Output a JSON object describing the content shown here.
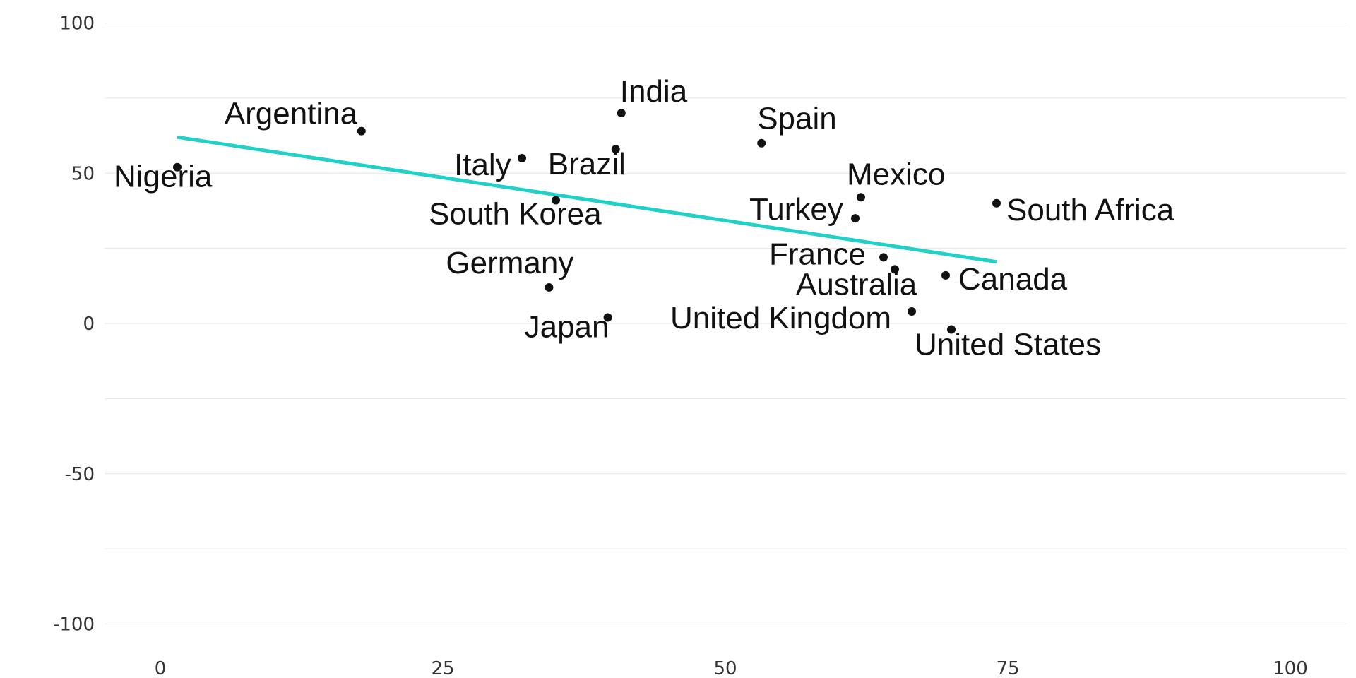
{
  "chart_data": {
    "type": "scatter",
    "title": "",
    "xlabel": "",
    "ylabel": "",
    "xlim": [
      -5,
      105
    ],
    "ylim": [
      -105,
      100
    ],
    "x_ticks": [
      0,
      25,
      50,
      75,
      100
    ],
    "y_ticks": [
      100,
      50,
      0,
      -50,
      -100
    ],
    "grid": "horizontal",
    "colors": {
      "points": "#111111",
      "trendline": "#1fd1c7",
      "grid": "#e6e6e6",
      "tick_text": "#333333"
    },
    "points": [
      {
        "label": "Nigeria",
        "x": 1.5,
        "y": 52
      },
      {
        "label": "Argentina",
        "x": 17.8,
        "y": 64
      },
      {
        "label": "Italy",
        "x": 32,
        "y": 55
      },
      {
        "label": "South Korea",
        "x": 35,
        "y": 41
      },
      {
        "label": "Germany",
        "x": 34.4,
        "y": 12
      },
      {
        "label": "Japan",
        "x": 39.6,
        "y": 2
      },
      {
        "label": "India",
        "x": 40.8,
        "y": 70
      },
      {
        "label": "Brazil",
        "x": 40.3,
        "y": 58
      },
      {
        "label": "Spain",
        "x": 53.2,
        "y": 60
      },
      {
        "label": "Mexico",
        "x": 62,
        "y": 42
      },
      {
        "label": "Turkey",
        "x": 61.5,
        "y": 35
      },
      {
        "label": "France",
        "x": 64,
        "y": 22
      },
      {
        "label": "Australia",
        "x": 65,
        "y": 18
      },
      {
        "label": "United Kingdom",
        "x": 66.5,
        "y": 4
      },
      {
        "label": "Canada",
        "x": 69.5,
        "y": 16
      },
      {
        "label": "United States",
        "x": 70,
        "y": -2
      },
      {
        "label": "South Africa",
        "x": 74,
        "y": 40
      }
    ],
    "trendline": {
      "x": [
        1.5,
        74
      ],
      "y": [
        62,
        20.5
      ]
    }
  }
}
